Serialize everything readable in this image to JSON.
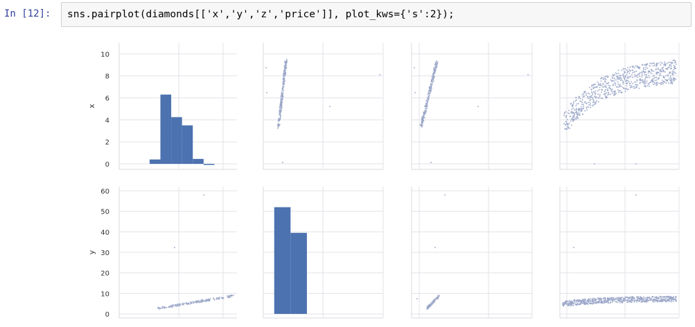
{
  "notebook": {
    "prompt": "In [12]:",
    "code": "sns.pairplot(diamonds[['x','y','z','price']], plot_kws={'s':2});"
  },
  "chart_data": {
    "type": "scatter",
    "variables": [
      "x",
      "y",
      "z",
      "price"
    ],
    "visible_rows": [
      "x",
      "y"
    ],
    "rows": [
      {
        "var": "x",
        "ylabel": "x",
        "ylim": [
          -0.5,
          11
        ],
        "yticks": [
          0,
          2,
          4,
          6,
          8,
          10
        ]
      },
      {
        "var": "y",
        "ylabel": "y",
        "ylim": [
          -2,
          62
        ],
        "yticks": [
          0,
          10,
          20,
          30,
          40,
          50,
          60
        ]
      }
    ],
    "histograms": {
      "x": {
        "bins": [
          [
            3.1,
            4.2,
            0.4
          ],
          [
            4.2,
            5.3,
            6.3
          ],
          [
            5.3,
            6.4,
            4.25
          ],
          [
            6.4,
            7.5,
            3.5
          ],
          [
            7.5,
            8.6,
            0.45
          ],
          [
            8.6,
            9.7,
            -0.2
          ]
        ]
      },
      "y": {
        "bins": [
          [
            0,
            6,
            52
          ],
          [
            6,
            12,
            39.5
          ]
        ]
      }
    },
    "color": "#4c72b0",
    "point_color": "#9aa6c8",
    "grid": true
  }
}
